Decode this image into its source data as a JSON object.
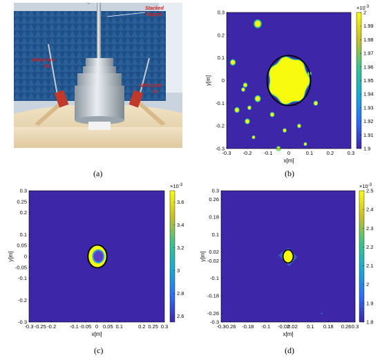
{
  "labels": {
    "a": "(a)",
    "b": "(b)",
    "c": "(c)",
    "d": "(d)"
  },
  "photo": {
    "annotations": {
      "stacked": "Stacked",
      "targets": "Targets",
      "rx1": "Wheel bre",
      "rx2": "Rx",
      "tx1": "NFM LWA",
      "tx2": "Tx"
    },
    "colors": {
      "absorber": "#1e4f86",
      "wall": "#dde6ee",
      "table": "#ecd9b4",
      "metal": "#b8c2cc"
    }
  },
  "chart_data": [
    {
      "type": "heatmap",
      "id": "b",
      "xlabel": "x[m]",
      "ylabel": "y[m]",
      "xlim": [
        -0.3,
        0.3
      ],
      "ylim": [
        -0.3,
        0.3
      ],
      "xticks": [
        "-0.3",
        "-0.2",
        "-0.1",
        "0",
        "0.1",
        "0.2",
        "0.3"
      ],
      "yticks": [
        "0.3",
        "0.2",
        "0.1",
        "0",
        "-0.1",
        "-0.2",
        "-0.3"
      ],
      "colorbar": {
        "exp": "×10",
        "sup": "-3",
        "ticks": [
          "2",
          "1.99",
          "1.98",
          "1.97",
          "1.96",
          "1.95",
          "1.94",
          "1.93",
          "1.92",
          "1.91",
          "1.9"
        ],
        "range": [
          1.9,
          2.0
        ]
      },
      "circle": {
        "cx": 0.0,
        "cy": 0.0,
        "rx": 0.105,
        "ry": 0.11
      },
      "blobs": [
        {
          "x": -0.15,
          "y": 0.25,
          "r": 0.014
        },
        {
          "x": -0.27,
          "y": 0.08,
          "r": 0.01
        },
        {
          "x": -0.21,
          "y": -0.02,
          "r": 0.008
        },
        {
          "x": -0.25,
          "y": -0.13,
          "r": 0.009
        },
        {
          "x": -0.2,
          "y": -0.18,
          "r": 0.009
        },
        {
          "x": -0.15,
          "y": -0.08,
          "r": 0.011
        },
        {
          "x": -0.19,
          "y": -0.12,
          "r": 0.007
        },
        {
          "x": -0.08,
          "y": -0.15,
          "r": 0.008
        },
        {
          "x": -0.02,
          "y": -0.22,
          "r": 0.007
        },
        {
          "x": 0.05,
          "y": -0.2,
          "r": 0.007
        },
        {
          "x": 0.13,
          "y": -0.1,
          "r": 0.008
        },
        {
          "x": 0.1,
          "y": 0.03,
          "r": 0.007
        },
        {
          "x": -0.05,
          "y": -0.3,
          "r": 0.008
        },
        {
          "x": 0.08,
          "y": -0.28,
          "r": 0.006
        },
        {
          "x": -0.22,
          "y": -0.04,
          "r": 0.007
        },
        {
          "x": -0.17,
          "y": -0.25,
          "r": 0.006
        }
      ]
    },
    {
      "type": "heatmap",
      "id": "c",
      "xlabel": "x[m]",
      "ylabel": "y[m]",
      "xlim": [
        -0.3,
        0.3
      ],
      "ylim": [
        -0.3,
        0.3
      ],
      "xticks": [
        "-0.3",
        "-0.25",
        "-0.2",
        "-0.1",
        "-0.05",
        "0",
        "0.05",
        "0.1",
        "0.2",
        "0.25",
        "0.3"
      ],
      "xtick_vals": [
        -0.3,
        -0.25,
        -0.2,
        -0.1,
        -0.05,
        0,
        0.05,
        0.1,
        0.2,
        0.25,
        0.3
      ],
      "yticks": [
        "0.3",
        "0.25",
        "0.2",
        "0.1",
        "0.05",
        "0",
        "-0.05",
        "-0.1",
        "-0.2",
        "-0.3"
      ],
      "ytick_vals": [
        0.3,
        0.25,
        0.2,
        0.1,
        0.05,
        0,
        -0.05,
        -0.1,
        -0.2,
        -0.3
      ],
      "colorbar": {
        "exp": "×10",
        "sup": "-3",
        "ticks": [
          "3.6",
          "3.4",
          "3.2",
          "3",
          "2.8",
          "2.6"
        ],
        "tick_vals": [
          3.6,
          3.4,
          3.2,
          3.0,
          2.8,
          2.6
        ],
        "range": [
          2.55,
          3.7
        ]
      },
      "circle": {
        "cx": 0.003,
        "cy": 0.0,
        "rx": 0.042,
        "ry": 0.052
      }
    },
    {
      "type": "heatmap",
      "id": "d",
      "xlabel": "x[m]",
      "ylabel": "y[m]",
      "xlim": [
        -0.3,
        0.3
      ],
      "ylim": [
        -0.3,
        0.3
      ],
      "xticks": [
        "-0.3",
        "-0.26",
        "-0.18",
        "-0.1",
        "-0.02",
        "0.02",
        "0.1",
        "0.18",
        "0.26",
        "0.3"
      ],
      "xtick_vals": [
        -0.3,
        -0.26,
        -0.18,
        -0.1,
        -0.02,
        0.02,
        0.1,
        0.18,
        0.26,
        0.3
      ],
      "yticks": [
        "0.3",
        "0.26",
        "0.18",
        "0.1",
        "0.02",
        "-0.02",
        "-0.1",
        "-0.18",
        "-0.26",
        "-0.3"
      ],
      "ytick_vals": [
        0.3,
        0.26,
        0.18,
        0.1,
        0.02,
        -0.02,
        -0.1,
        -0.18,
        -0.26,
        -0.3
      ],
      "colorbar": {
        "exp": "×10",
        "sup": "-3",
        "ticks": [
          "2.5",
          "2.4",
          "2.3",
          "2.2",
          "2.1",
          "2",
          "1.9",
          "1.8"
        ],
        "tick_vals": [
          2.5,
          2.4,
          2.3,
          2.2,
          2.1,
          2.0,
          1.9,
          1.8
        ],
        "range": [
          1.8,
          2.5
        ]
      },
      "circle": {
        "cx": 0.0,
        "cy": 0.0,
        "rx": 0.023,
        "ry": 0.03
      }
    }
  ],
  "colors": {
    "bg": "#3e26a8",
    "yellow": "#f9fb0e",
    "teal": "#2bbfa0",
    "mid": "#35a2d6"
  }
}
